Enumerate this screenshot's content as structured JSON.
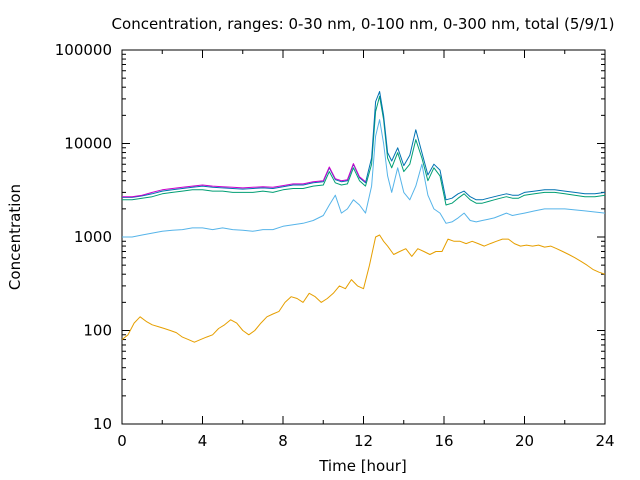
{
  "chart_data": {
    "type": "line",
    "title": "Concentration, ranges: 0-30 nm, 0-100 nm, 0-300 nm, total (5/9/1)",
    "xlabel": "Time [hour]",
    "ylabel": "Concentration",
    "xlim": [
      0,
      24
    ],
    "ylim": [
      10,
      100000
    ],
    "yscale": "log",
    "xticks": [
      0,
      4,
      8,
      12,
      16,
      20,
      24
    ],
    "xtick_labels": [
      "0",
      "4",
      "8",
      "12",
      "16",
      "20",
      "24"
    ],
    "yticks": [
      10,
      100,
      1000,
      10000,
      100000
    ],
    "ytick_labels": [
      "10",
      "100",
      "1000",
      "10000",
      "100000"
    ],
    "grid": false,
    "legend": "none",
    "series": [
      {
        "color": "#e69f00",
        "x": [
          0,
          0.3,
          0.6,
          0.9,
          1.2,
          1.5,
          1.8,
          2.1,
          2.4,
          2.7,
          3.0,
          3.3,
          3.6,
          3.9,
          4.2,
          4.5,
          4.8,
          5.1,
          5.4,
          5.7,
          6.0,
          6.3,
          6.6,
          6.9,
          7.2,
          7.5,
          7.8,
          8.1,
          8.4,
          8.7,
          9.0,
          9.3,
          9.6,
          9.9,
          10.2,
          10.5,
          10.8,
          11.1,
          11.4,
          11.7,
          12.0,
          12.3,
          12.6,
          12.8,
          13.0,
          13.2,
          13.5,
          13.8,
          14.1,
          14.4,
          14.7,
          15.0,
          15.3,
          15.6,
          15.9,
          16.2,
          16.5,
          16.8,
          17.1,
          17.4,
          17.7,
          18.0,
          18.3,
          18.6,
          18.9,
          19.2,
          19.5,
          19.8,
          20.1,
          20.4,
          20.7,
          21.0,
          21.3,
          21.6,
          21.9,
          22.2,
          22.5,
          22.8,
          23.1,
          23.4,
          23.7,
          24.0
        ],
        "y": [
          80,
          90,
          120,
          140,
          125,
          115,
          110,
          105,
          100,
          95,
          85,
          80,
          75,
          80,
          85,
          90,
          105,
          115,
          130,
          120,
          100,
          90,
          100,
          120,
          140,
          150,
          160,
          200,
          230,
          220,
          200,
          250,
          230,
          200,
          220,
          250,
          300,
          280,
          350,
          300,
          280,
          500,
          1000,
          1050,
          900,
          800,
          650,
          700,
          750,
          620,
          750,
          700,
          650,
          700,
          700,
          950,
          900,
          900,
          850,
          900,
          850,
          800,
          850,
          900,
          950,
          950,
          850,
          800,
          820,
          800,
          820,
          780,
          800,
          750,
          700,
          650,
          600,
          550,
          500,
          450,
          420,
          400
        ]
      },
      {
        "color": "#56b4e9",
        "x": [
          0,
          0.5,
          1.0,
          1.5,
          2.0,
          2.5,
          3.0,
          3.5,
          4.0,
          4.5,
          5.0,
          5.5,
          6.0,
          6.5,
          7.0,
          7.5,
          8.0,
          8.5,
          9.0,
          9.5,
          10.0,
          10.3,
          10.6,
          10.9,
          11.2,
          11.5,
          11.8,
          12.1,
          12.4,
          12.6,
          12.8,
          13.0,
          13.2,
          13.4,
          13.7,
          14.0,
          14.3,
          14.6,
          14.9,
          15.2,
          15.5,
          15.8,
          16.1,
          16.4,
          16.7,
          17.0,
          17.3,
          17.6,
          17.9,
          18.2,
          18.5,
          18.8,
          19.1,
          19.4,
          19.7,
          20.0,
          20.5,
          21.0,
          21.5,
          22.0,
          22.5,
          23.0,
          23.5,
          24.0
        ],
        "y": [
          1000,
          1000,
          1050,
          1100,
          1150,
          1180,
          1200,
          1250,
          1250,
          1200,
          1250,
          1200,
          1180,
          1150,
          1200,
          1200,
          1300,
          1350,
          1400,
          1500,
          1700,
          2200,
          2800,
          1800,
          2000,
          2500,
          2200,
          1800,
          3500,
          12000,
          18000,
          10000,
          4500,
          3000,
          5500,
          3000,
          2500,
          3500,
          6000,
          2800,
          2000,
          1800,
          1400,
          1450,
          1600,
          1800,
          1500,
          1450,
          1500,
          1550,
          1600,
          1700,
          1800,
          1700,
          1750,
          1800,
          1900,
          2000,
          2000,
          2000,
          1950,
          1900,
          1850,
          1800
        ]
      },
      {
        "color": "#009e73",
        "x": [
          0,
          0.5,
          1.0,
          1.5,
          2.0,
          2.5,
          3.0,
          3.5,
          4.0,
          4.5,
          5.0,
          5.5,
          6.0,
          6.5,
          7.0,
          7.5,
          8.0,
          8.5,
          9.0,
          9.5,
          10.0,
          10.3,
          10.6,
          10.9,
          11.2,
          11.5,
          11.8,
          12.1,
          12.4,
          12.6,
          12.8,
          13.0,
          13.2,
          13.4,
          13.7,
          14.0,
          14.3,
          14.6,
          14.9,
          15.2,
          15.5,
          15.8,
          16.1,
          16.4,
          16.7,
          17.0,
          17.3,
          17.6,
          17.9,
          18.2,
          18.5,
          18.8,
          19.1,
          19.4,
          19.7,
          20.0,
          20.5,
          21.0,
          21.5,
          22.0,
          22.5,
          23.0,
          23.5,
          24.0
        ],
        "y": [
          2500,
          2500,
          2600,
          2700,
          2900,
          3000,
          3100,
          3200,
          3200,
          3100,
          3100,
          3000,
          3000,
          3000,
          3100,
          3000,
          3200,
          3300,
          3300,
          3500,
          3600,
          5000,
          3800,
          3600,
          3700,
          5500,
          4000,
          3500,
          6000,
          22000,
          32000,
          18000,
          7000,
          5500,
          8000,
          5000,
          6000,
          11000,
          7000,
          4000,
          5500,
          4500,
          2200,
          2300,
          2600,
          2900,
          2500,
          2300,
          2300,
          2400,
          2500,
          2600,
          2700,
          2600,
          2600,
          2800,
          2900,
          3000,
          3000,
          2900,
          2800,
          2700,
          2700,
          2800
        ]
      },
      {
        "color": "#0072b2",
        "x": [
          0,
          0.5,
          1.0,
          1.5,
          2.0,
          2.5,
          3.0,
          3.5,
          4.0,
          4.5,
          5.0,
          5.5,
          6.0,
          6.5,
          7.0,
          7.5,
          8.0,
          8.5,
          9.0,
          9.5,
          10.0,
          10.3,
          10.6,
          10.9,
          11.2,
          11.5,
          11.8,
          12.1,
          12.4,
          12.6,
          12.8,
          13.0,
          13.2,
          13.4,
          13.7,
          14.0,
          14.3,
          14.6,
          14.9,
          15.2,
          15.5,
          15.8,
          16.1,
          16.4,
          16.7,
          17.0,
          17.3,
          17.6,
          17.9,
          18.2,
          18.5,
          18.8,
          19.1,
          19.4,
          19.7,
          20.0,
          20.5,
          21.0,
          21.5,
          22.0,
          22.5,
          23.0,
          23.5,
          24.0
        ],
        "y": [
          2650,
          2650,
          2750,
          2900,
          3100,
          3200,
          3300,
          3400,
          3500,
          3400,
          3350,
          3300,
          3250,
          3300,
          3350,
          3300,
          3450,
          3600,
          3600,
          3800,
          3900,
          5500,
          4100,
          3900,
          4000,
          6000,
          4300,
          3800,
          7000,
          28000,
          36000,
          20000,
          8000,
          6500,
          9000,
          5800,
          7500,
          14000,
          8000,
          4600,
          6000,
          5200,
          2500,
          2600,
          2900,
          3100,
          2700,
          2500,
          2500,
          2600,
          2700,
          2800,
          2900,
          2800,
          2800,
          3000,
          3100,
          3200,
          3200,
          3100,
          3000,
          2900,
          2900,
          3000
        ]
      },
      {
        "color": "#cc00cc",
        "x": [
          0,
          0.5,
          1.0,
          1.5,
          2.0,
          2.5,
          3.0,
          3.5,
          4.0,
          4.5,
          5.0,
          5.5,
          6.0,
          6.5,
          7.0,
          7.5,
          8.0,
          8.5,
          9.0,
          9.5,
          10.0,
          10.3,
          10.6,
          10.9,
          11.2,
          11.5,
          11.8,
          12.1
        ],
        "y": [
          2700,
          2700,
          2800,
          3000,
          3200,
          3300,
          3400,
          3500,
          3600,
          3500,
          3450,
          3400,
          3350,
          3400,
          3450,
          3400,
          3550,
          3700,
          3700,
          3900,
          4000,
          5600,
          4200,
          4000,
          4100,
          6100,
          4400,
          3900
        ]
      }
    ]
  }
}
